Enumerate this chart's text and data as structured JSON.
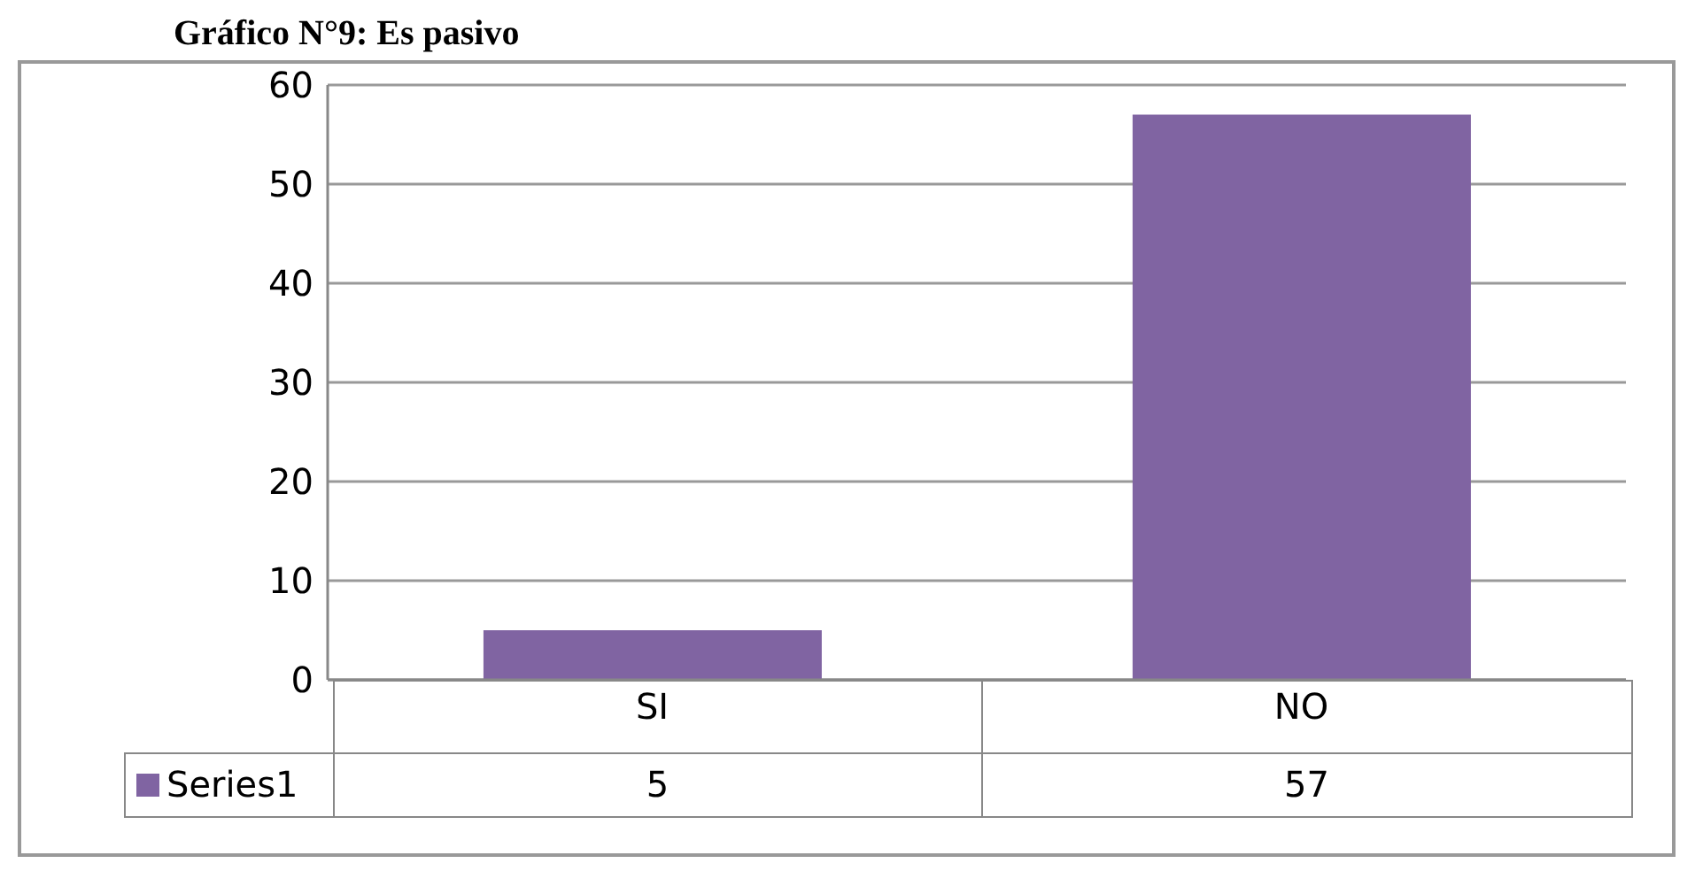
{
  "chart_data": {
    "type": "bar",
    "title": "Gráfico N°9: Es pasivo",
    "categories": [
      "SI",
      "NO"
    ],
    "series": [
      {
        "name": "Series1",
        "color": "#8064a2",
        "values": [
          5,
          57
        ]
      }
    ],
    "ylim": [
      0,
      60
    ],
    "yticks": [
      0,
      10,
      20,
      30,
      40,
      50,
      60
    ],
    "grid": "y",
    "legend": "bottom",
    "data_labels": true
  }
}
